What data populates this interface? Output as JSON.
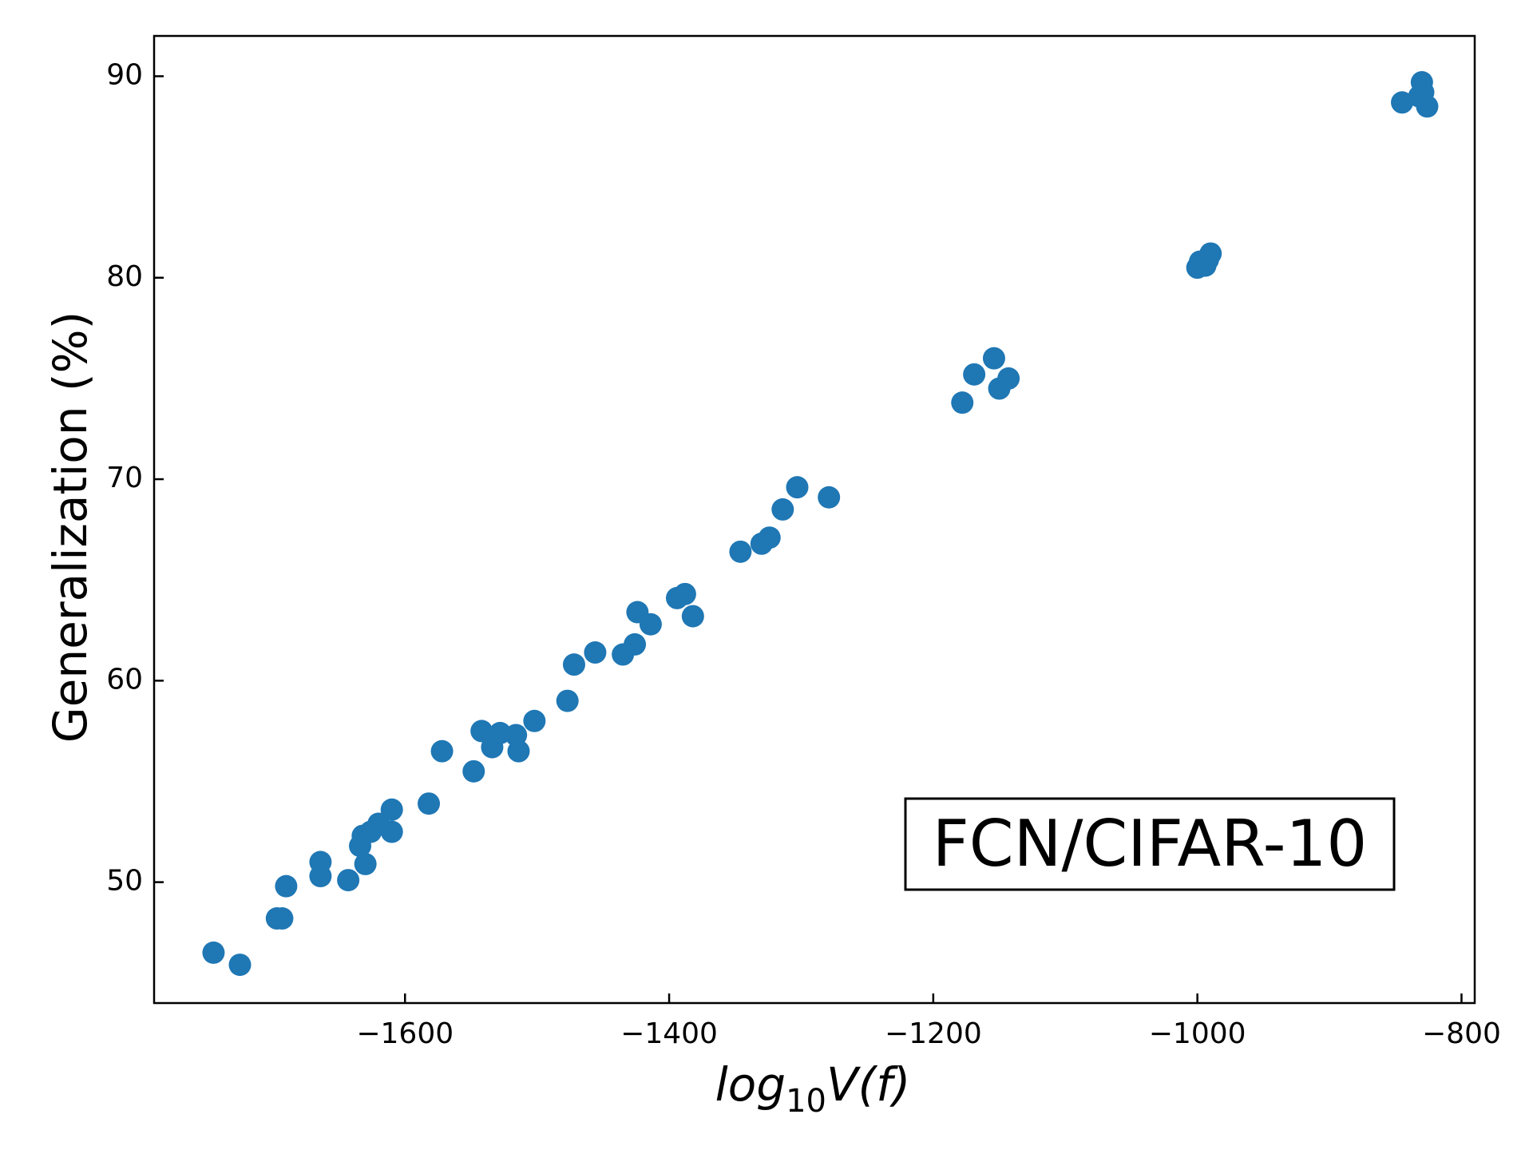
{
  "chart_data": {
    "type": "scatter",
    "xlabel": {
      "prefix": "log",
      "subscript": "10",
      "suffix": "V(f)"
    },
    "ylabel": "Generalization (%)",
    "annotation": "FCN/CIFAR-10",
    "annotation_placement": "bottom-right",
    "xlim": [
      -1790,
      -790
    ],
    "ylim": [
      44,
      92
    ],
    "xticks": [
      -1600,
      -1400,
      -1200,
      -1000,
      -800
    ],
    "xtick_labels": [
      "−1600",
      "−1400",
      "−1200",
      "−1000",
      "−800"
    ],
    "yticks": [
      50,
      60,
      70,
      80,
      90
    ],
    "ytick_labels": [
      "50",
      "60",
      "70",
      "80",
      "90"
    ],
    "grid": false,
    "color": "#1f77b4",
    "series": [
      {
        "points": [
          [
            -1745,
            46.5
          ],
          [
            -1725,
            45.9
          ],
          [
            -1697,
            48.2
          ],
          [
            -1693,
            48.2
          ],
          [
            -1690,
            49.8
          ],
          [
            -1664,
            51.0
          ],
          [
            -1664,
            50.3
          ],
          [
            -1643,
            50.1
          ],
          [
            -1634,
            51.8
          ],
          [
            -1632,
            52.3
          ],
          [
            -1630,
            50.9
          ],
          [
            -1626,
            52.5
          ],
          [
            -1620,
            52.9
          ],
          [
            -1610,
            53.6
          ],
          [
            -1610,
            52.5
          ],
          [
            -1582,
            53.9
          ],
          [
            -1572,
            56.5
          ],
          [
            -1548,
            55.5
          ],
          [
            -1542,
            57.5
          ],
          [
            -1534,
            56.7
          ],
          [
            -1528,
            57.4
          ],
          [
            -1516,
            57.3
          ],
          [
            -1514,
            56.5
          ],
          [
            -1502,
            58.0
          ],
          [
            -1477,
            59.0
          ],
          [
            -1472,
            60.8
          ],
          [
            -1456,
            61.4
          ],
          [
            -1435,
            61.3
          ],
          [
            -1426,
            61.8
          ],
          [
            -1424,
            63.4
          ],
          [
            -1414,
            62.8
          ],
          [
            -1394,
            64.1
          ],
          [
            -1388,
            64.3
          ],
          [
            -1382,
            63.2
          ],
          [
            -1346,
            66.4
          ],
          [
            -1330,
            66.8
          ],
          [
            -1324,
            67.1
          ],
          [
            -1314,
            68.5
          ],
          [
            -1303,
            69.6
          ],
          [
            -1279,
            69.1
          ],
          [
            -1178,
            73.8
          ],
          [
            -1169,
            75.2
          ],
          [
            -1154,
            76.0
          ],
          [
            -1150,
            74.5
          ],
          [
            -1143,
            75.0
          ],
          [
            -1000,
            80.5
          ],
          [
            -998,
            80.8
          ],
          [
            -994,
            80.6
          ],
          [
            -992,
            80.9
          ],
          [
            -990,
            81.2
          ],
          [
            -845,
            88.7
          ],
          [
            -832,
            89.0
          ],
          [
            -830,
            89.7
          ],
          [
            -829,
            89.2
          ],
          [
            -826,
            88.5
          ]
        ]
      }
    ]
  }
}
